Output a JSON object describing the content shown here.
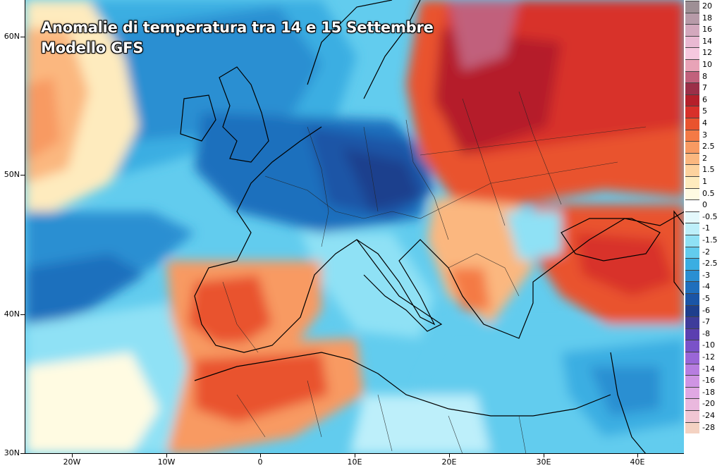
{
  "title": {
    "line1": "Anomalie di temperatura tra 14 e 15 Settembre",
    "line2": "Modello GFS"
  },
  "lat_labels": [
    "60N",
    "50N",
    "40N",
    "30N"
  ],
  "lon_labels": [
    "20W",
    "10W",
    "0",
    "10E",
    "20E",
    "30E",
    "40E"
  ],
  "legend": [
    {
      "label": "20",
      "color": "#9e8f95"
    },
    {
      "label": "18",
      "color": "#b79aa8"
    },
    {
      "label": "16",
      "color": "#d3a8bd"
    },
    {
      "label": "14",
      "color": "#e9b9d2"
    },
    {
      "label": "12",
      "color": "#f6c8df"
    },
    {
      "label": "10",
      "color": "#e8a3b7"
    },
    {
      "label": "8",
      "color": "#c1617c"
    },
    {
      "label": "7",
      "color": "#9b2f48"
    },
    {
      "label": "6",
      "color": "#b51f2a"
    },
    {
      "label": "5",
      "color": "#d8302a"
    },
    {
      "label": "4",
      "color": "#e9532e"
    },
    {
      "label": "3",
      "color": "#f47a45"
    },
    {
      "label": "2.5",
      "color": "#f89a62"
    },
    {
      "label": "2",
      "color": "#fbb77f"
    },
    {
      "label": "1.5",
      "color": "#fdd29e"
    },
    {
      "label": "1",
      "color": "#feebbe"
    },
    {
      "label": "0.5",
      "color": "#fffbe2"
    },
    {
      "label": "0",
      "color": "#ffffff"
    },
    {
      "label": "-0.5",
      "color": "#e4f8fc"
    },
    {
      "label": "-1",
      "color": "#bdeffa"
    },
    {
      "label": "-1.5",
      "color": "#8fe1f5"
    },
    {
      "label": "-2",
      "color": "#62ccee"
    },
    {
      "label": "-2.5",
      "color": "#3aaee2"
    },
    {
      "label": "-3",
      "color": "#2a8fd2"
    },
    {
      "label": "-4",
      "color": "#1f6fbd"
    },
    {
      "label": "-5",
      "color": "#1a55a6"
    },
    {
      "label": "-6",
      "color": "#1e3f8d"
    },
    {
      "label": "-7",
      "color": "#3e3c9b"
    },
    {
      "label": "-8",
      "color": "#5b3fb0"
    },
    {
      "label": "-10",
      "color": "#7a52c8"
    },
    {
      "label": "-12",
      "color": "#9a66d7"
    },
    {
      "label": "-14",
      "color": "#b77de0"
    },
    {
      "label": "-16",
      "color": "#cf94e3"
    },
    {
      "label": "-18",
      "color": "#e0a8e3"
    },
    {
      "label": "-20",
      "color": "#eab8de"
    },
    {
      "label": "-24",
      "color": "#f0c6d3"
    },
    {
      "label": "-28",
      "color": "#f4d2c2"
    }
  ]
}
